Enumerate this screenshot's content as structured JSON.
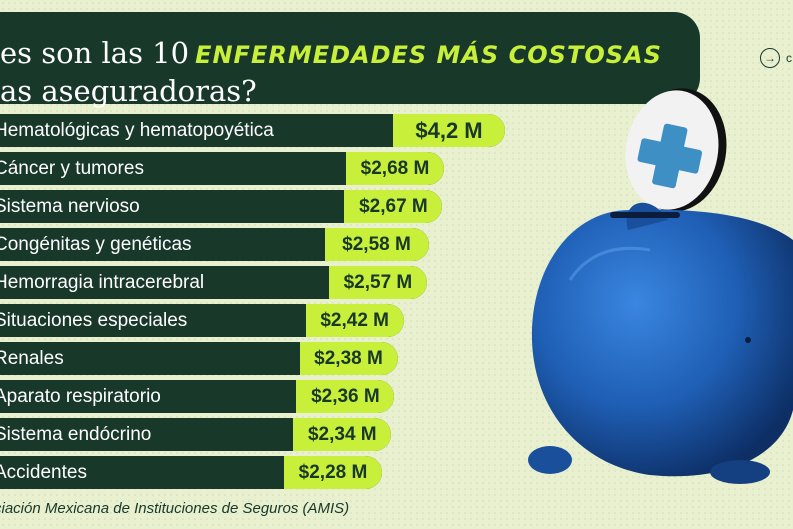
{
  "header": {
    "title_line1_prefix": "es son las 10",
    "title_accent": "ENFERMEDADES MÁS COSTOSAS",
    "title_line2": "as aseguradoras?"
  },
  "link": {
    "icon": "arrow-right-icon",
    "label": "c"
  },
  "chart_data": {
    "type": "bar",
    "orientation": "horizontal",
    "categories": [
      "Hematológicas y hematopoyética",
      "Cáncer y tumores",
      "Sistema nervioso",
      "Congénitas y genéticas",
      "Hemorragia intracerebral",
      "Situaciones especiales",
      "Renales",
      "Aparato respiratorio",
      "Sistema endócrino",
      "Accidentes"
    ],
    "values": [
      4.2,
      2.68,
      2.67,
      2.58,
      2.57,
      2.42,
      2.38,
      2.36,
      2.34,
      2.28
    ],
    "value_labels": [
      "$4,2 M",
      "$2,68 M",
      "$2,67 M",
      "$2,58 M",
      "$2,57 M",
      "$2,42 M",
      "$2,38 M",
      "$2,36 M",
      "$2,34 M",
      "$2,28 M"
    ],
    "colors": {
      "bar": "#18382a",
      "value_pill": "#c8ef3a",
      "text": "#ffffff",
      "value_text": "#18382a"
    }
  },
  "source": "ciación Mexicana de Instituciones de Seguros (AMIS)",
  "colors": {
    "background": "#e8f0cf",
    "dark_green": "#18382a",
    "lime": "#c8ef3a",
    "piggy_blue": "#1f5fb5",
    "cross_blue": "#3d8fc4"
  }
}
